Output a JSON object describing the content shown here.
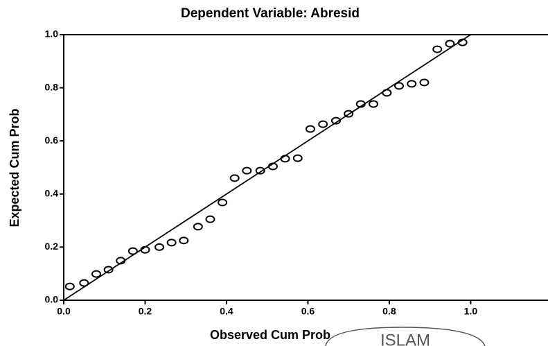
{
  "chart_data": {
    "type": "scatter",
    "title": "Dependent Variable: Abresid",
    "x_label": "Observed Cum Prob",
    "y_label": "Expected Cum Prob",
    "watermark": "ISLAM",
    "color": "#000000",
    "xlim": [
      0,
      1.19
    ],
    "ylim": [
      0,
      1.0
    ],
    "xticks": [
      {
        "value": 0,
        "label": "0.0"
      },
      {
        "value": 0.2,
        "label": "0.2"
      },
      {
        "value": 0.4,
        "label": "0.4"
      },
      {
        "value": 0.6,
        "label": "0.6"
      },
      {
        "value": 0.8,
        "label": "0.8"
      },
      {
        "value": 1.0,
        "label": "1.0"
      }
    ],
    "yticks": [
      {
        "value": 0,
        "label": "0.0"
      },
      {
        "value": 0.2,
        "label": "0.2"
      },
      {
        "value": 0.4,
        "label": "0.4"
      },
      {
        "value": 0.6,
        "label": "0.6"
      },
      {
        "value": 0.8,
        "label": "0.8"
      },
      {
        "value": 1.0,
        "label": "1.0"
      }
    ],
    "x": [
      0.015,
      0.05,
      0.08,
      0.11,
      0.14,
      0.17,
      0.2,
      0.235,
      0.265,
      0.295,
      0.33,
      0.36,
      0.39,
      0.42,
      0.45,
      0.483,
      0.514,
      0.544,
      0.575,
      0.606,
      0.637,
      0.669,
      0.7,
      0.73,
      0.761,
      0.794,
      0.824,
      0.855,
      0.886,
      0.918,
      0.949,
      0.98
    ],
    "values": [
      0.052,
      0.065,
      0.099,
      0.115,
      0.149,
      0.185,
      0.19,
      0.2,
      0.217,
      0.225,
      0.277,
      0.305,
      0.368,
      0.46,
      0.488,
      0.488,
      0.504,
      0.533,
      0.535,
      0.645,
      0.663,
      0.676,
      0.702,
      0.739,
      0.739,
      0.781,
      0.807,
      0.815,
      0.82,
      0.945,
      0.966,
      0.971
    ]
  }
}
